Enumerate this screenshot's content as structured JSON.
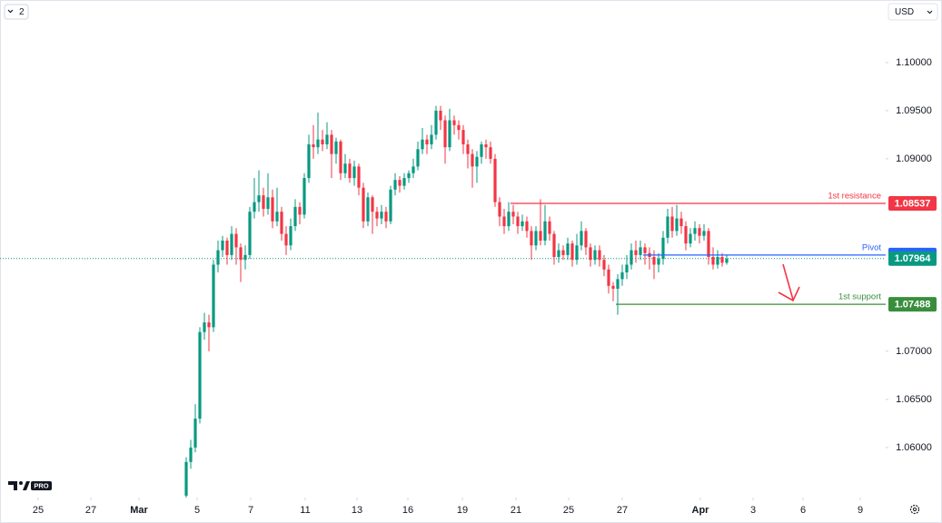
{
  "ui": {
    "badge": "2",
    "currency": "USD",
    "logo": "PRO"
  },
  "chart_data": {
    "type": "candlestick",
    "up_color": "#089981",
    "down_color": "#f23645",
    "ylim": [
      1.0548,
      1.1065
    ],
    "yticks": [
      {
        "value": 1.1,
        "label": "1.10000"
      },
      {
        "value": 1.095,
        "label": "1.09500"
      },
      {
        "value": 1.09,
        "label": "1.09000"
      },
      {
        "value": 1.07,
        "label": "1.07000"
      },
      {
        "value": 1.065,
        "label": "1.06500"
      },
      {
        "value": 1.06,
        "label": "1.06000"
      }
    ],
    "xlim": [
      -41,
      154
    ],
    "xticks": [
      {
        "value": -32.6,
        "label": "25"
      },
      {
        "value": -21,
        "label": "27"
      },
      {
        "value": -10.4,
        "label": "Mar"
      },
      {
        "value": 2.4,
        "label": "5"
      },
      {
        "value": 14.2,
        "label": "7"
      },
      {
        "value": 26.2,
        "label": "11"
      },
      {
        "value": 37.6,
        "label": "13"
      },
      {
        "value": 48.8,
        "label": "16"
      },
      {
        "value": 60.8,
        "label": "19"
      },
      {
        "value": 72.6,
        "label": "21"
      },
      {
        "value": 84.2,
        "label": "25"
      },
      {
        "value": 96,
        "label": "27"
      },
      {
        "value": 113.2,
        "label": "Apr"
      },
      {
        "value": 124.8,
        "label": "3"
      },
      {
        "value": 135.8,
        "label": "6"
      },
      {
        "value": 148.4,
        "label": "9"
      }
    ],
    "open": [
      1.055,
      1.0585,
      1.06,
      1.063,
      1.072,
      1.073,
      1.0725,
      1.079,
      1.0805,
      1.0815,
      1.08,
      1.0822,
      1.0808,
      1.0795,
      1.08,
      1.0845,
      1.0855,
      1.0862,
      1.0848,
      1.086,
      1.0835,
      1.0845,
      1.0822,
      1.081,
      1.083,
      1.085,
      1.0842,
      1.088,
      1.0915,
      1.0912,
      1.092,
      1.0915,
      1.0925,
      1.0905,
      1.0918,
      1.0885,
      1.0895,
      1.088,
      1.0892,
      1.087,
      1.0835,
      1.086,
      1.0845,
      1.0838,
      1.0845,
      1.0835,
      1.0868,
      1.0878,
      1.0872,
      1.088,
      1.0885,
      1.0892,
      1.091,
      1.092,
      1.0915,
      1.0925,
      1.095,
      1.094,
      1.0912,
      1.094,
      1.0935,
      1.093,
      1.0915,
      1.0905,
      1.0892,
      1.0902,
      1.0915,
      1.0912,
      1.09,
      1.0855,
      1.084,
      1.083,
      1.0845,
      1.084,
      1.083,
      1.0835,
      1.0825,
      1.081,
      1.0825,
      1.0815,
      1.0835,
      1.0822,
      1.0798,
      1.0805,
      1.08,
      1.0812,
      1.0795,
      1.081,
      1.0825,
      1.0808,
      1.0795,
      1.0805,
      1.0795,
      1.0785,
      1.0768,
      1.0765,
      1.0775,
      1.0782,
      1.079,
      1.0805,
      1.08,
      1.0808,
      1.0802,
      1.0798,
      1.079,
      1.0796,
      1.0818,
      1.084,
      1.0825,
      1.0838,
      1.083,
      1.0812,
      1.0822,
      1.0828,
      1.082,
      1.0825,
      1.0798,
      1.079,
      1.0798,
      1.0792
    ],
    "high": [
      1.059,
      1.0608,
      1.0645,
      1.0725,
      1.074,
      1.0738,
      1.0795,
      1.0815,
      1.082,
      1.0818,
      1.083,
      1.0828,
      1.0812,
      1.081,
      1.085,
      1.088,
      1.0888,
      1.087,
      1.0885,
      1.0868,
      1.087,
      1.085,
      1.083,
      1.0838,
      1.0858,
      1.0855,
      1.0885,
      1.0925,
      1.0935,
      1.0948,
      1.093,
      1.0938,
      1.093,
      1.0922,
      1.092,
      1.0905,
      1.09,
      1.0898,
      1.0895,
      1.0875,
      1.0865,
      1.0862,
      1.085,
      1.0852,
      1.085,
      1.0872,
      1.0885,
      1.0882,
      1.0885,
      1.0888,
      1.09,
      1.0918,
      1.0932,
      1.0925,
      1.0935,
      1.0955,
      1.0955,
      1.0945,
      1.0952,
      1.0945,
      1.094,
      1.0935,
      1.092,
      1.091,
      1.0908,
      1.0918,
      1.092,
      1.0918,
      1.0905,
      1.086,
      1.0848,
      1.0855,
      1.0852,
      1.0845,
      1.0842,
      1.084,
      1.083,
      1.083,
      1.0858,
      1.0852,
      1.084,
      1.0825,
      1.0812,
      1.081,
      1.0818,
      1.0815,
      1.0822,
      1.0835,
      1.0828,
      1.0812,
      1.081,
      1.081,
      1.08,
      1.079,
      1.0772,
      1.078,
      1.079,
      1.08,
      1.0812,
      1.0815,
      1.0815,
      1.0812,
      1.0808,
      1.0805,
      1.0802,
      1.0825,
      1.0848,
      1.085,
      1.0852,
      1.0845,
      1.0835,
      1.0828,
      1.0835,
      1.0832,
      1.0832,
      1.0828,
      1.0808,
      1.0805,
      1.0802,
      1.08
    ],
    "low": [
      1.0548,
      1.0578,
      1.0595,
      1.0625,
      1.0712,
      1.07,
      1.072,
      1.0782,
      1.0798,
      1.079,
      1.0795,
      1.079,
      1.0772,
      1.0785,
      1.0796,
      1.0838,
      1.0845,
      1.084,
      1.0842,
      1.0828,
      1.083,
      1.0815,
      1.08,
      1.0805,
      1.0825,
      1.0832,
      1.0838,
      1.0875,
      1.09,
      1.0905,
      1.0908,
      1.091,
      1.088,
      1.0895,
      1.0878,
      1.088,
      1.0875,
      1.0872,
      1.0862,
      1.0828,
      1.083,
      1.0822,
      1.083,
      1.0832,
      1.0828,
      1.0832,
      1.0862,
      1.0865,
      1.0868,
      1.0875,
      1.088,
      1.0888,
      1.0905,
      1.0905,
      1.091,
      1.092,
      1.093,
      1.0895,
      1.0908,
      1.0925,
      1.092,
      1.0905,
      1.089,
      1.087,
      1.0875,
      1.0895,
      1.09,
      1.0895,
      1.085,
      1.083,
      1.0822,
      1.0825,
      1.0832,
      1.0822,
      1.0825,
      1.0818,
      1.0795,
      1.0805,
      1.081,
      1.081,
      1.0815,
      1.079,
      1.0792,
      1.0795,
      1.0795,
      1.0788,
      1.079,
      1.0805,
      1.08,
      1.0788,
      1.079,
      1.0788,
      1.0778,
      1.076,
      1.0752,
      1.0738,
      1.0768,
      1.0775,
      1.0785,
      1.0792,
      1.0795,
      1.079,
      1.0785,
      1.0775,
      1.0782,
      1.079,
      1.0812,
      1.0818,
      1.082,
      1.0822,
      1.0805,
      1.0808,
      1.0815,
      1.0812,
      1.0815,
      1.079,
      1.0785,
      1.0786,
      1.0788,
      1.079
    ],
    "close": [
      1.0585,
      1.06,
      1.063,
      1.072,
      1.073,
      1.0725,
      1.079,
      1.0805,
      1.0815,
      1.08,
      1.0822,
      1.0808,
      1.0795,
      1.08,
      1.0845,
      1.0855,
      1.0862,
      1.0848,
      1.086,
      1.0835,
      1.0845,
      1.0822,
      1.081,
      1.083,
      1.085,
      1.0842,
      1.088,
      1.0915,
      1.0912,
      1.092,
      1.0915,
      1.0925,
      1.0905,
      1.0918,
      1.0885,
      1.0895,
      1.088,
      1.0892,
      1.087,
      1.0835,
      1.086,
      1.0845,
      1.0838,
      1.0845,
      1.0835,
      1.0868,
      1.0878,
      1.0872,
      1.088,
      1.0885,
      1.0892,
      1.091,
      1.092,
      1.0915,
      1.0925,
      1.095,
      1.094,
      1.0912,
      1.094,
      1.0935,
      1.093,
      1.0915,
      1.0905,
      1.0892,
      1.0902,
      1.0915,
      1.0912,
      1.09,
      1.0855,
      1.084,
      1.083,
      1.0845,
      1.084,
      1.083,
      1.0835,
      1.0825,
      1.081,
      1.0825,
      1.0815,
      1.0835,
      1.0822,
      1.0798,
      1.0805,
      1.08,
      1.0812,
      1.0795,
      1.081,
      1.0825,
      1.0808,
      1.0795,
      1.0805,
      1.0795,
      1.0785,
      1.0768,
      1.0765,
      1.0775,
      1.0782,
      1.079,
      1.0805,
      1.08,
      1.0808,
      1.0802,
      1.0798,
      1.079,
      1.0796,
      1.0818,
      1.084,
      1.0825,
      1.0838,
      1.083,
      1.0812,
      1.0822,
      1.0828,
      1.082,
      1.0825,
      1.0798,
      1.079,
      1.0798,
      1.0792,
      1.0796
    ],
    "levels": [
      {
        "name": "1st resistance",
        "value": 1.08537,
        "color": "#f23645",
        "start": 71.4
      },
      {
        "name": "Pivot",
        "value": 1.08,
        "color": "#2962ff",
        "start": 100.6
      },
      {
        "name": "1st support",
        "value": 1.07488,
        "color": "#388e3c",
        "start": 94.6
      }
    ],
    "last_price": 1.07964,
    "last_price_color": "#089981"
  }
}
